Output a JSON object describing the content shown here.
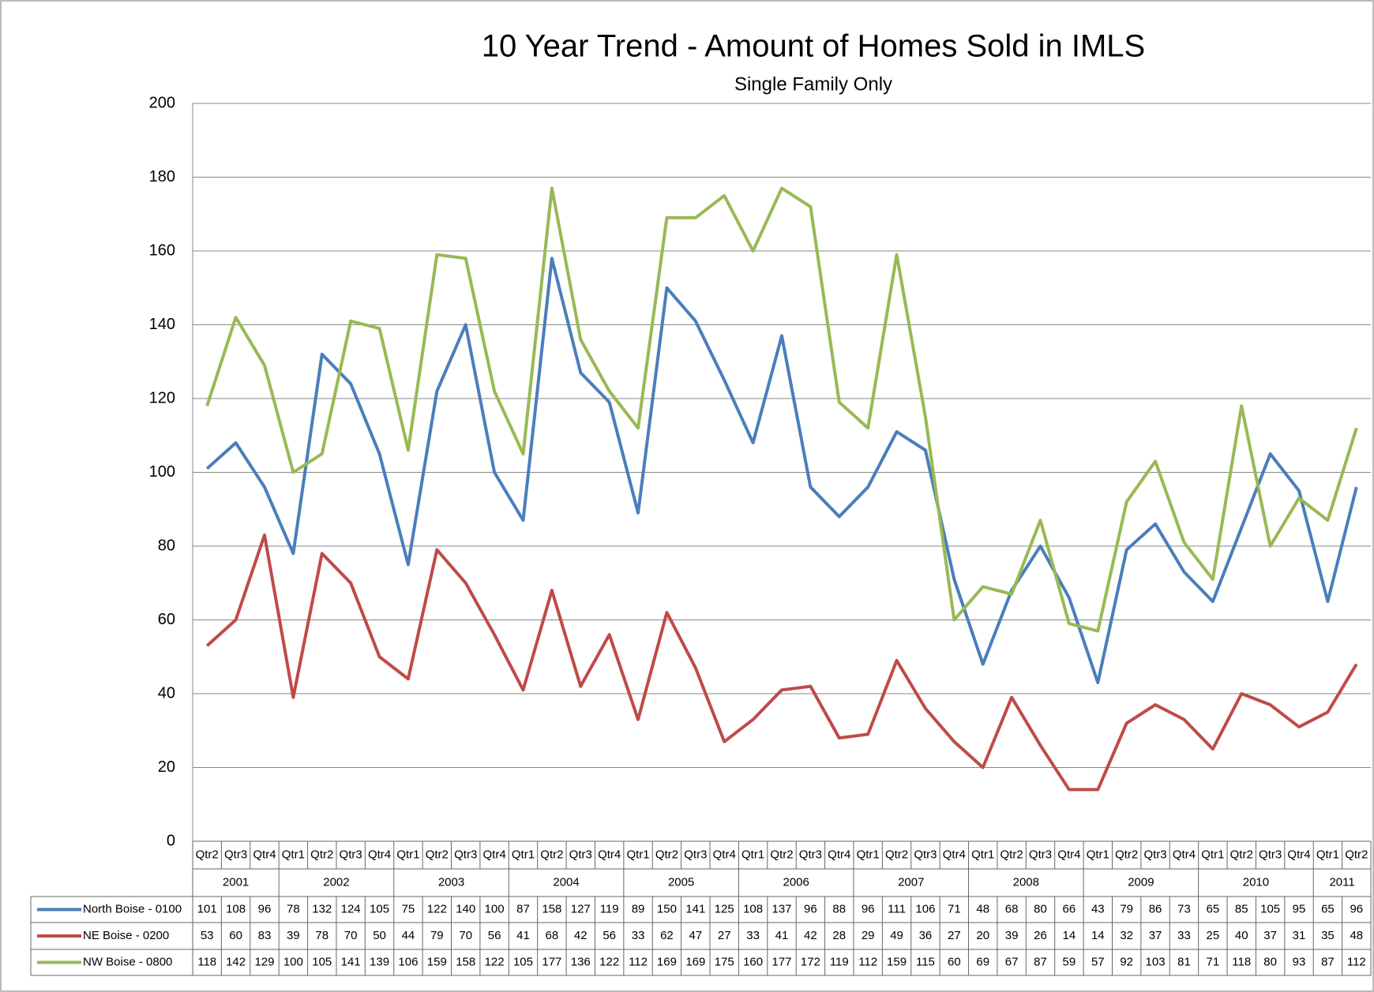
{
  "chart_data": {
    "type": "line",
    "title": "10 Year Trend  - Amount of Homes Sold in IMLS",
    "subtitle": "Single Family Only",
    "groups": [
      {
        "label": "2001",
        "quarters": [
          "Qtr2",
          "Qtr3",
          "Qtr4"
        ]
      },
      {
        "label": "2002",
        "quarters": [
          "Qtr1",
          "Qtr2",
          "Qtr3",
          "Qtr4"
        ]
      },
      {
        "label": "2003",
        "quarters": [
          "Qtr1",
          "Qtr2",
          "Qtr3",
          "Qtr4"
        ]
      },
      {
        "label": "2004",
        "quarters": [
          "Qtr1",
          "Qtr2",
          "Qtr3",
          "Qtr4"
        ]
      },
      {
        "label": "2005",
        "quarters": [
          "Qtr1",
          "Qtr2",
          "Qtr3",
          "Qtr4"
        ]
      },
      {
        "label": "2006",
        "quarters": [
          "Qtr1",
          "Qtr2",
          "Qtr3",
          "Qtr4"
        ]
      },
      {
        "label": "2007",
        "quarters": [
          "Qtr1",
          "Qtr2",
          "Qtr3",
          "Qtr4"
        ]
      },
      {
        "label": "2008",
        "quarters": [
          "Qtr1",
          "Qtr2",
          "Qtr3",
          "Qtr4"
        ]
      },
      {
        "label": "2009",
        "quarters": [
          "Qtr1",
          "Qtr2",
          "Qtr3",
          "Qtr4"
        ]
      },
      {
        "label": "2010",
        "quarters": [
          "Qtr1",
          "Qtr2",
          "Qtr3",
          "Qtr4"
        ]
      },
      {
        "label": "2011",
        "quarters": [
          "Qtr1",
          "Qtr2"
        ]
      }
    ],
    "series": [
      {
        "name": "North Boise - 0100",
        "color": "#4a7ebb",
        "values": [
          101,
          108,
          96,
          78,
          132,
          124,
          105,
          75,
          122,
          140,
          100,
          87,
          158,
          127,
          119,
          89,
          150,
          141,
          125,
          108,
          137,
          96,
          88,
          96,
          111,
          106,
          71,
          48,
          68,
          80,
          66,
          43,
          79,
          86,
          73,
          65,
          85,
          105,
          95,
          65,
          96
        ]
      },
      {
        "name": "NE Boise - 0200",
        "color": "#be4b48",
        "values": [
          53,
          60,
          83,
          39,
          78,
          70,
          50,
          44,
          79,
          70,
          56,
          41,
          68,
          42,
          56,
          33,
          62,
          47,
          27,
          33,
          41,
          42,
          28,
          29,
          49,
          36,
          27,
          20,
          39,
          26,
          14,
          14,
          32,
          37,
          33,
          25,
          40,
          37,
          31,
          35,
          48
        ]
      },
      {
        "name": "NW Boise - 0800",
        "color": "#98b954",
        "values": [
          118,
          142,
          129,
          100,
          105,
          141,
          139,
          106,
          159,
          158,
          122,
          105,
          177,
          136,
          122,
          112,
          169,
          169,
          175,
          160,
          177,
          172,
          119,
          112,
          159,
          115,
          60,
          69,
          67,
          87,
          59,
          57,
          92,
          103,
          81,
          71,
          118,
          80,
          93,
          87,
          112
        ]
      }
    ],
    "ylim": [
      0,
      200
    ],
    "yticks": [
      0,
      20,
      40,
      60,
      80,
      100,
      120,
      140,
      160,
      180,
      200
    ],
    "grid": true
  }
}
